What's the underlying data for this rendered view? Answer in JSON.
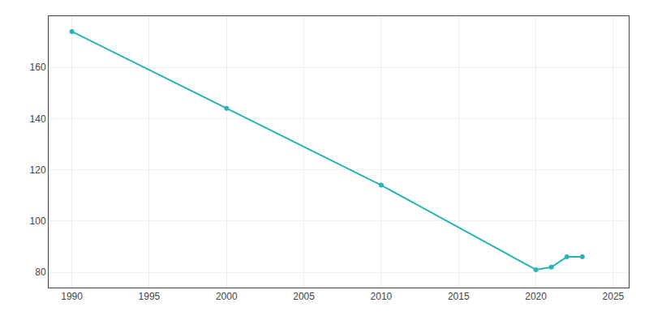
{
  "chart_data": {
    "type": "line",
    "x": [
      1990,
      2000,
      2010,
      2020,
      2021,
      2022,
      2023
    ],
    "values": [
      174,
      144,
      114,
      81,
      82,
      86,
      86
    ],
    "color": "#2ab5b5",
    "marker": "circle",
    "xlim": [
      1988.5,
      2026
    ],
    "xticks": [
      1990,
      1995,
      2000,
      2005,
      2010,
      2015,
      2020,
      2025
    ],
    "ylim": [
      74,
      180
    ],
    "yticks": [
      80,
      100,
      120,
      140,
      160
    ],
    "grid": true
  }
}
